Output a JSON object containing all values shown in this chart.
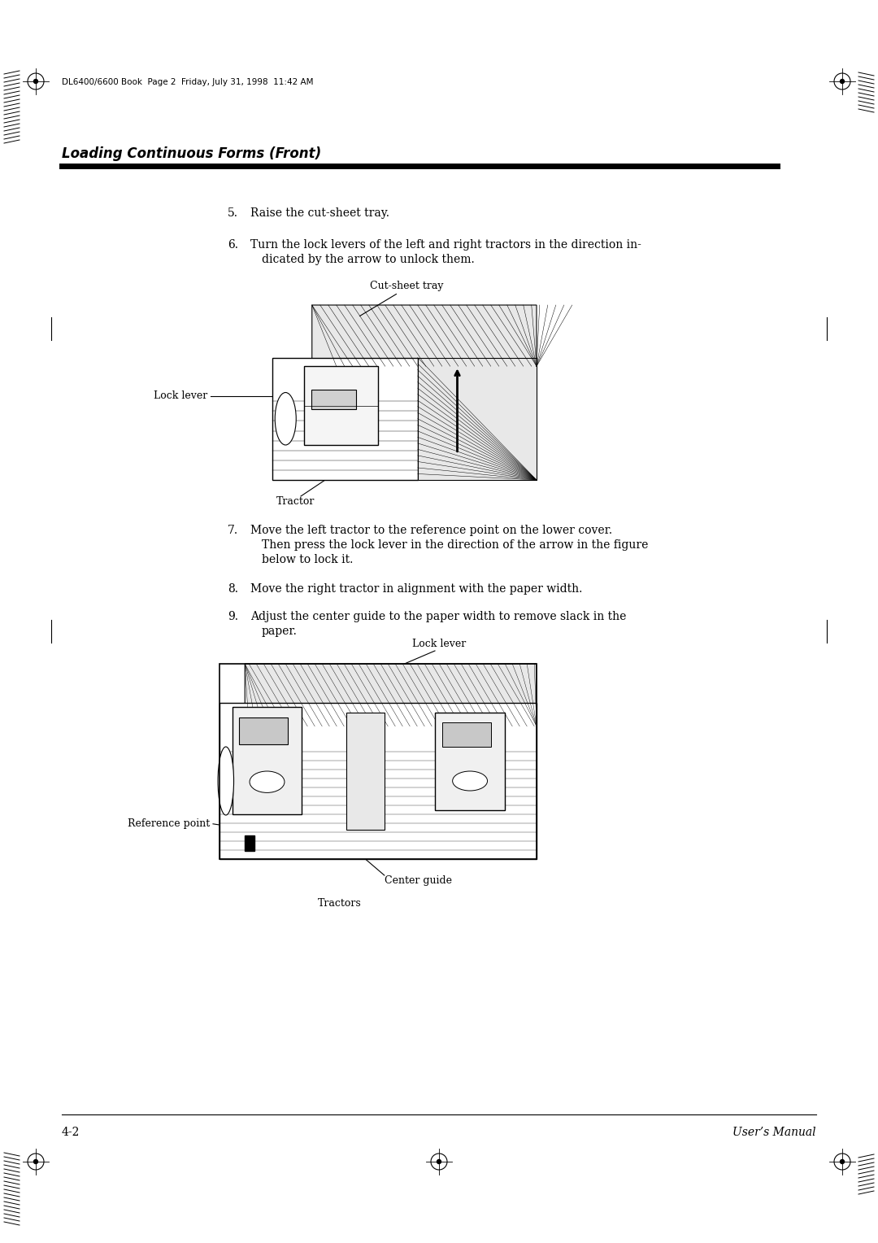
{
  "page_bg": "#ffffff",
  "header_text": "DL6400/6600 Book  Page 2  Friday, July 31, 1998  11:42 AM",
  "header_fontsize": 7.5,
  "section_title": "Loading Continuous Forms (Front)",
  "section_title_fontsize": 12,
  "steps": [
    {
      "num": "5.",
      "text": "Raise the cut-sheet tray."
    },
    {
      "num": "6.",
      "text": "Turn the lock levers of the left and right tractors in the direction in-\n   dicated by the arrow to unlock them."
    },
    {
      "num": "7.",
      "text": "Move the left tractor to the reference point on the lower cover.\n   Then press the lock lever in the direction of the arrow in the figure\n   below to lock it."
    },
    {
      "num": "8.",
      "text": "Move the right tractor in alignment with the paper width."
    },
    {
      "num": "9.",
      "text": "Adjust the center guide to the paper width to remove slack in the\n   paper."
    }
  ],
  "step_fontsize": 10,
  "label_fontsize": 9,
  "footer_left": "4-2",
  "footer_right": "User’s Manual",
  "footer_fontsize": 10
}
